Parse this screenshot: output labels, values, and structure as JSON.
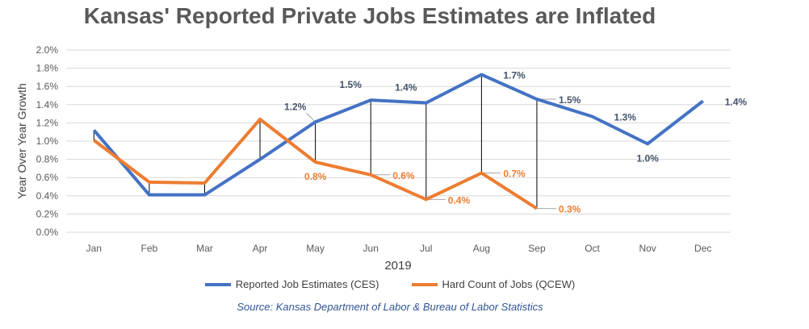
{
  "title": "Kansas' Reported Private Jobs Estimates are Inflated",
  "source": "Source: Kansas Department of Labor & Bureau of Labor Statistics",
  "colors": {
    "ces": "#4472c4",
    "qcew": "#ed7d31",
    "connector": "#000000",
    "grid": "#d9d9d9"
  },
  "chart_data": {
    "type": "line",
    "title": "Kansas' Reported Private Jobs Estimates are Inflated",
    "xlabel": "2019",
    "ylabel": "Year Over Year Growth",
    "categories": [
      "Jan",
      "Feb",
      "Mar",
      "Apr",
      "May",
      "Jun",
      "Jul",
      "Aug",
      "Sep",
      "Oct",
      "Nov",
      "Dec"
    ],
    "y_ticks": [
      "0.0%",
      "0.2%",
      "0.4%",
      "0.6%",
      "0.8%",
      "1.0%",
      "1.2%",
      "1.4%",
      "1.6%",
      "1.8%",
      "2.0%"
    ],
    "ylim": [
      0,
      2.0
    ],
    "grid": true,
    "legend_position": "bottom",
    "series": [
      {
        "name": "Reported Job Estimates (CES)",
        "color": "#4472c4",
        "values": [
          1.12,
          0.41,
          0.41,
          0.8,
          1.21,
          1.45,
          1.42,
          1.73,
          1.46,
          1.27,
          0.97,
          1.44
        ],
        "data_labels": [
          null,
          null,
          null,
          null,
          "1.2%",
          "1.5%",
          "1.4%",
          "1.7%",
          "1.5%",
          "1.3%",
          "1.0%",
          "1.4%"
        ]
      },
      {
        "name": "Hard Count of Jobs (QCEW)",
        "color": "#ed7d31",
        "values": [
          1.01,
          0.55,
          0.54,
          1.24,
          0.77,
          0.63,
          0.36,
          0.65,
          0.26,
          null,
          null,
          null
        ],
        "data_labels": [
          null,
          null,
          null,
          null,
          "0.8%",
          "0.6%",
          "0.4%",
          "0.7%",
          "0.3%",
          null,
          null,
          null
        ]
      }
    ]
  }
}
